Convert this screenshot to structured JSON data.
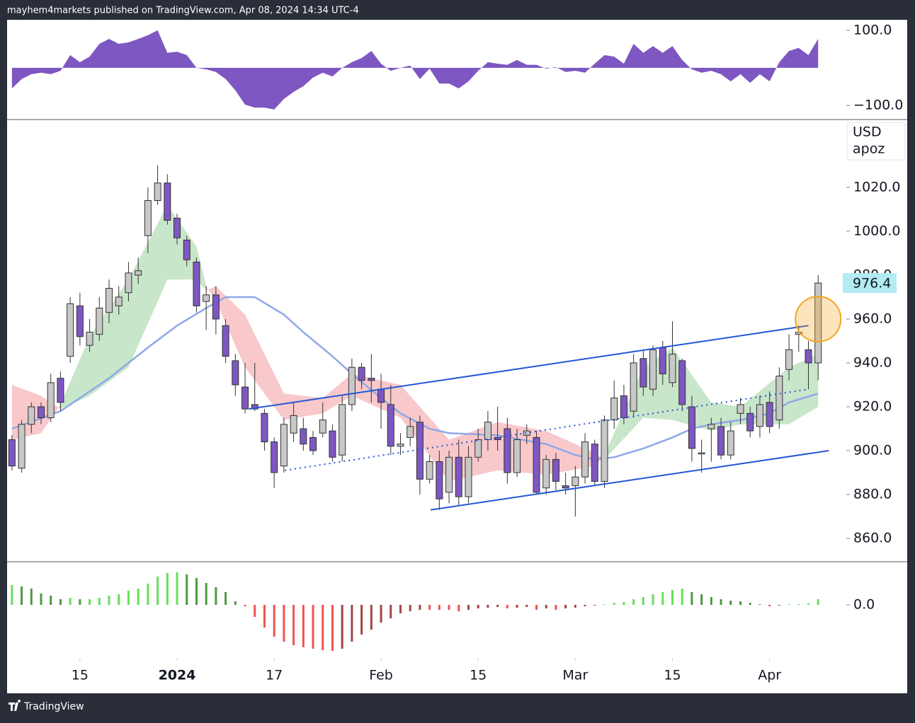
{
  "header": {
    "text": "mayhem4markets published on TradingView.com, Apr 08, 2024 14:34 UTC-4"
  },
  "footer": {
    "brand": "TradingView"
  },
  "chart_data": [
    {
      "type": "area",
      "color": "#7e57c2",
      "xlim": [
        -0.5,
        85.9
      ],
      "ylim": [
        -136,
        128
      ],
      "yticks": [
        {
          "value": 100,
          "label": "100.0"
        },
        {
          "value": -100,
          "label": "−100.0"
        }
      ],
      "values": [
        -55,
        -30,
        -17,
        -13,
        -17,
        -8,
        34,
        15,
        30,
        64,
        77,
        64,
        68,
        77,
        87,
        100,
        40,
        43,
        34,
        0,
        -4,
        -11,
        -30,
        -60,
        -98,
        -106,
        -106,
        -111,
        -83,
        -64,
        -49,
        -26,
        -13,
        -23,
        0,
        15,
        26,
        45,
        11,
        -8,
        0,
        6,
        -30,
        -2,
        -42,
        -42,
        -55,
        -36,
        -8,
        15,
        11,
        8,
        21,
        8,
        8,
        -2,
        2,
        -11,
        -8,
        -13,
        11,
        34,
        30,
        11,
        64,
        40,
        58,
        40,
        58,
        21,
        -4,
        -13,
        -8,
        -17,
        -36,
        -17,
        -40,
        -17,
        -36,
        15,
        45,
        53,
        34,
        77
      ]
    },
    {
      "type": "candlestick",
      "currency": "USD",
      "symbol": "apoz",
      "up_color": "#c8c8c8",
      "down_color": "#7e57c2",
      "xlim": [
        -0.5,
        85.9
      ],
      "ylim": [
        849.7,
        1050.6
      ],
      "yticks": [
        {
          "value": 860,
          "label": "860.0"
        },
        {
          "value": 880,
          "label": "880.0"
        },
        {
          "value": 900,
          "label": "900.0"
        },
        {
          "value": 920,
          "label": "920.0"
        },
        {
          "value": 940,
          "label": "940.0"
        },
        {
          "value": 960,
          "label": "960.0"
        },
        {
          "value": 980,
          "label": "980.0"
        },
        {
          "value": 1000,
          "label": "1000.0"
        },
        {
          "value": 1020,
          "label": "1020.0"
        }
      ],
      "xticks": [
        {
          "value": 7,
          "label": "15"
        },
        {
          "value": 17,
          "label": "2024"
        },
        {
          "value": 27,
          "label": "17"
        },
        {
          "value": 38,
          "label": "Feb"
        },
        {
          "value": 48,
          "label": "15"
        },
        {
          "value": 58,
          "label": "Mar"
        },
        {
          "value": 68,
          "label": "15"
        },
        {
          "value": 78,
          "label": "Apr"
        }
      ],
      "open": [
        905,
        892,
        912,
        920,
        915,
        933,
        943,
        966,
        948,
        953,
        963,
        966,
        972,
        980,
        998,
        1014,
        1022,
        1006,
        996,
        986,
        968,
        971,
        957,
        941,
        929,
        921,
        917,
        904,
        893,
        908,
        910,
        906,
        908,
        909,
        898,
        921,
        938,
        933,
        928,
        921,
        902,
        906,
        913,
        887,
        895,
        881,
        897,
        879,
        897,
        905,
        906,
        910,
        890,
        907,
        906,
        883,
        896,
        884,
        884,
        888,
        903,
        886,
        914,
        925,
        918,
        942,
        928,
        947,
        931,
        941,
        920,
        899,
        910,
        911,
        898,
        917,
        917,
        911,
        922,
        914,
        937,
        953,
        946,
        940
      ],
      "high": [
        907,
        914,
        922,
        922,
        935,
        936,
        970,
        972,
        960,
        970,
        978,
        975,
        986,
        988,
        1020,
        1030,
        1026,
        1008,
        998,
        988,
        975,
        975,
        960,
        944,
        940,
        940,
        919,
        906,
        915,
        922,
        915,
        909,
        922,
        912,
        925,
        942,
        940,
        944,
        935,
        930,
        908,
        915,
        916,
        898,
        900,
        900,
        905,
        902,
        910,
        918,
        920,
        915,
        910,
        912,
        909,
        898,
        899,
        890,
        893,
        908,
        905,
        916,
        932,
        930,
        944,
        946,
        948,
        950,
        959,
        942,
        925,
        905,
        915,
        915,
        913,
        924,
        920,
        925,
        927,
        938,
        953,
        957,
        950,
        980
      ],
      "low": [
        891,
        890,
        908,
        912,
        913,
        918,
        940,
        948,
        945,
        950,
        958,
        962,
        968,
        976,
        990,
        1012,
        1003,
        994,
        984,
        963,
        955,
        953,
        940,
        925,
        917,
        918,
        900,
        883,
        890,
        904,
        900,
        898,
        906,
        895,
        895,
        918,
        928,
        922,
        910,
        898,
        898,
        902,
        880,
        885,
        873,
        876,
        875,
        876,
        895,
        900,
        900,
        885,
        888,
        903,
        880,
        880,
        882,
        880,
        870,
        885,
        884,
        883,
        910,
        912,
        915,
        925,
        925,
        930,
        929,
        918,
        895,
        890,
        895,
        896,
        896,
        912,
        906,
        906,
        908,
        910,
        932,
        945,
        928,
        932
      ],
      "close": [
        893,
        912,
        920,
        915,
        931,
        922,
        967,
        952,
        954,
        965,
        974,
        970,
        981,
        982,
        1014,
        1022,
        1005,
        997,
        987,
        966,
        971,
        960,
        943,
        930,
        919,
        919,
        904,
        890,
        912,
        916,
        903,
        900,
        914,
        897,
        921,
        938,
        932,
        932,
        922,
        902,
        903,
        911,
        887,
        895,
        878,
        897,
        879,
        897,
        905,
        913,
        905,
        890,
        905,
        909,
        881,
        896,
        886,
        883,
        888,
        904,
        886,
        914,
        924,
        915,
        940,
        929,
        946,
        935,
        944,
        921,
        901,
        899,
        912,
        898,
        909,
        921,
        909,
        921,
        911,
        934,
        946,
        954,
        940,
        976.4
      ],
      "ribbon": {
        "up_color": "#c8e6c9",
        "down_color": "#f8c8cb",
        "x": [
          0,
          3,
          5,
          8,
          12,
          16,
          19,
          20,
          21,
          24,
          28,
          32,
          35,
          40,
          45,
          50,
          55,
          60,
          61,
          65,
          68,
          72,
          75,
          80,
          83
        ],
        "fast": [
          905,
          908,
          921,
          952,
          978,
          1012,
          993,
          975,
          968,
          938,
          914,
          917,
          925,
          915,
          886,
          891,
          889,
          893,
          898,
          938,
          947,
          922,
          920,
          938,
          944
        ],
        "slow": [
          930,
          925,
          919,
          925,
          938,
          978,
          978,
          973,
          975,
          962,
          926,
          924,
          935,
          930,
          905,
          913,
          909,
          899,
          896,
          915,
          914,
          909,
          912,
          912,
          920
        ]
      },
      "ma": {
        "color": "#8fa8e8",
        "x": [
          0,
          5,
          10,
          14,
          17,
          20,
          22,
          25,
          28,
          30,
          33,
          35,
          38,
          40,
          43,
          45,
          50,
          55,
          58,
          60,
          62,
          65,
          68,
          70,
          72,
          75,
          78,
          80,
          83
        ],
        "values": [
          910,
          918,
          933,
          947,
          957,
          965,
          970,
          970,
          962,
          954,
          943,
          935,
          924,
          917,
          910,
          908,
          907,
          903,
          898,
          896,
          897,
          901,
          906,
          910,
          912,
          914,
          917,
          922,
          926
        ]
      },
      "trendlines": [
        {
          "x": [
            24.4,
            82
          ],
          "values": [
            919,
            957
          ],
          "style": "solid",
          "color": "#2457d6"
        },
        {
          "x": [
            43.1,
            84.1
          ],
          "values": [
            873,
            900
          ],
          "style": "solid",
          "color": "#2457d6"
        },
        {
          "x": [
            28.1,
            82
          ],
          "values": [
            891,
            928
          ],
          "style": "dotted",
          "color": "#2457d6"
        }
      ],
      "highlight": {
        "x": 83,
        "value": 960,
        "color": "#f5a623"
      },
      "last_price_color": "#b2ebf2"
    },
    {
      "type": "histogram",
      "xlim": [
        -0.5,
        85.9
      ],
      "ylim": [
        -7.5,
        6
      ],
      "yticks": [
        {
          "value": 0,
          "label": "0.0"
        }
      ],
      "colors": {
        "pos_up": "#66e05a",
        "pos_down": "#4c9a3e",
        "neg_down": "#ef5350",
        "neg_up": "#a14545"
      },
      "values": [
        2.8,
        2.6,
        2.3,
        1.6,
        1.3,
        0.8,
        1.0,
        0.8,
        0.8,
        1.0,
        1.3,
        1.5,
        2.0,
        2.3,
        3.0,
        4.0,
        4.5,
        4.6,
        4.3,
        3.8,
        3.1,
        2.5,
        1.8,
        0.5,
        -0.2,
        -1.7,
        -3.2,
        -4.5,
        -5.2,
        -5.7,
        -6.0,
        -6.2,
        -6.4,
        -6.5,
        -6.2,
        -5.2,
        -4.2,
        -3.5,
        -2.5,
        -1.9,
        -1.2,
        -0.9,
        -0.7,
        -0.7,
        -0.7,
        -0.7,
        -0.9,
        -0.7,
        -0.5,
        -0.4,
        -0.3,
        -0.5,
        -0.4,
        -0.3,
        -0.7,
        -0.5,
        -0.7,
        -0.5,
        -0.4,
        -0.2,
        -0.1,
        0.1,
        0.3,
        0.4,
        0.8,
        1.1,
        1.5,
        1.8,
        2.1,
        2.3,
        1.8,
        1.5,
        1.1,
        0.8,
        0.6,
        0.5,
        0.3,
        0.1,
        -0.2,
        -0.1,
        0.1,
        0.1,
        0.2,
        0.8
      ]
    }
  ]
}
